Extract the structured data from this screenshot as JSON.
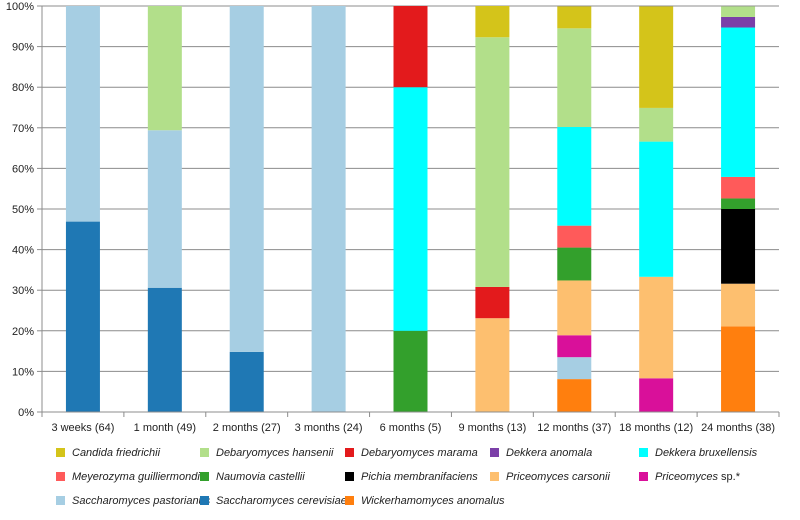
{
  "chart_data": {
    "type": "bar",
    "stacked": true,
    "percent_stacked": true,
    "title": "",
    "xlabel": "",
    "ylabel": "",
    "ylim": [
      0,
      100
    ],
    "y_ticks": [
      "0%",
      "10%",
      "20%",
      "30%",
      "40%",
      "50%",
      "60%",
      "70%",
      "80%",
      "90%",
      "100%"
    ],
    "grid": true,
    "legend_position": "bottom",
    "categories": [
      "3 weeks (64)",
      "1 month (49)",
      "2 months (27)",
      "3 months (24)",
      "6 months (5)",
      "9 months (13)",
      "12 months (37)",
      "18 months (12)",
      "24 months (38)"
    ],
    "series": [
      {
        "name": "Wickerhamomyces anomalus",
        "color": "#ff7f0e",
        "values": [
          0,
          0,
          0,
          0,
          0,
          0,
          8.1,
          0,
          21.1
        ]
      },
      {
        "name": "Priceomyces sp.",
        "suffix": "*",
        "color": "#d9109a",
        "values": [
          0,
          0,
          0,
          0,
          0,
          0,
          0,
          8.3,
          0
        ]
      },
      {
        "name": "Saccharomyces pastorianus",
        "color": "#a6cee3",
        "values": [
          0,
          0,
          0,
          0,
          0,
          0,
          5.4,
          0,
          0
        ]
      },
      {
        "name": "Priceomyces sp.",
        "suffix": "*",
        "color": "#d9109a",
        "values": [
          0,
          0,
          0,
          0,
          0,
          0,
          5.4,
          0,
          0
        ]
      },
      {
        "name": "Priceomyces carsonii",
        "color": "#fdbf6f",
        "values": [
          0,
          0,
          0,
          0,
          0,
          23.1,
          13.5,
          25.0,
          10.5
        ]
      },
      {
        "name": "Naumovia castellii",
        "color": "#33a02c",
        "values": [
          0,
          0,
          0,
          0,
          20.0,
          0,
          8.1,
          0,
          0
        ]
      },
      {
        "name": "Saccharomyces cerevisiae",
        "color": "#1f78b4",
        "values": [
          46.9,
          30.6,
          14.8,
          0,
          0,
          0,
          0,
          0,
          0
        ]
      },
      {
        "name": "Pichia membranifaciens",
        "color": "#000000",
        "values": [
          0,
          0,
          0,
          0,
          0,
          0,
          0,
          0,
          18.4
        ]
      },
      {
        "name": "Naumovia castellii",
        "color": "#33a02c",
        "values": [
          0,
          0,
          0,
          0,
          0,
          0,
          0,
          0,
          2.6
        ]
      },
      {
        "name": "Meyerozyma guilliermondii",
        "color": "#ff5a5a",
        "values": [
          0,
          0,
          0,
          0,
          0,
          0,
          5.4,
          0,
          5.3
        ]
      },
      {
        "name": "Debaryomyces marama",
        "color": "#e31a1c",
        "values": [
          0,
          0,
          0,
          0,
          0,
          7.7,
          0,
          0,
          0
        ]
      },
      {
        "name": "Saccharomyces pastorianus",
        "color": "#a6cee3",
        "values": [
          53.1,
          38.8,
          85.2,
          100,
          0,
          0,
          0,
          0,
          0
        ]
      },
      {
        "name": "Dekkera bruxellensis",
        "color": "#00ffff",
        "values": [
          0,
          0,
          0,
          0,
          60.0,
          0,
          24.3,
          33.3,
          36.8
        ]
      },
      {
        "name": "Debaryomyces marama",
        "color": "#e31a1c",
        "values": [
          0,
          0,
          0,
          0,
          20.0,
          0,
          0,
          0,
          0
        ]
      },
      {
        "name": "Dekkera anomala",
        "color": "#7b3fa8",
        "values": [
          0,
          0,
          0,
          0,
          0,
          0,
          0,
          0,
          2.6
        ]
      },
      {
        "name": "Debaryomyces hansenii",
        "color": "#b2df8a",
        "values": [
          0,
          30.6,
          0,
          0,
          0,
          61.5,
          24.3,
          8.3,
          2.6
        ]
      },
      {
        "name": "Candida friedrichii",
        "color": "#d4c41a",
        "values": [
          0,
          0,
          0,
          0,
          0,
          7.7,
          5.4,
          25.0,
          0
        ]
      }
    ],
    "legend": [
      {
        "name": "Candida friedrichii",
        "color": "#d4c41a"
      },
      {
        "name": "Debaryomyces hansenii",
        "color": "#b2df8a"
      },
      {
        "name": "Debaryomyces marama",
        "color": "#e31a1c"
      },
      {
        "name": "Dekkera anomala",
        "color": "#7b3fa8"
      },
      {
        "name": "Dekkera bruxellensis",
        "color": "#00ffff"
      },
      {
        "name": "Meyerozyma guilliermondii",
        "color": "#ff5a5a"
      },
      {
        "name": "Naumovia castellii",
        "color": "#33a02c"
      },
      {
        "name": "Pichia membranifaciens",
        "color": "#000000"
      },
      {
        "name": "Priceomyces carsonii",
        "color": "#fdbf6f"
      },
      {
        "name": "Priceomyces sp.",
        "suffix": "*",
        "color": "#d9109a"
      },
      {
        "name": "Saccharomyces pastorianus",
        "color": "#a6cee3"
      },
      {
        "name": "Saccharomyces cerevisiae",
        "color": "#1f78b4"
      },
      {
        "name": "Wickerhamomyces anomalus",
        "color": "#ff7f0e"
      }
    ]
  }
}
